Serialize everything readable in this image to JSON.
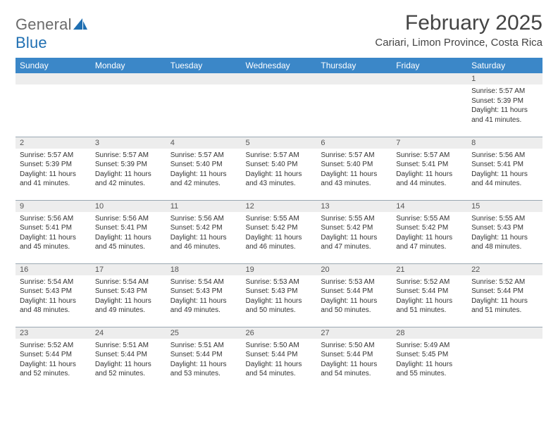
{
  "brand": {
    "part1": "General",
    "part2": "Blue"
  },
  "title": {
    "month": "February 2025",
    "location": "Cariari, Limon Province, Costa Rica"
  },
  "colors": {
    "header_bg": "#3b87c8",
    "header_text": "#ffffff",
    "daynum_bg": "#ededed",
    "rule": "#9aa7b2",
    "brand_gray": "#6b6b6b",
    "brand_blue": "#1f6fb2",
    "text": "#333333"
  },
  "typography": {
    "body_pt": 10,
    "daynum_pt": 11,
    "dow_pt": 12,
    "month_pt": 30,
    "location_pt": 15
  },
  "dow": [
    "Sunday",
    "Monday",
    "Tuesday",
    "Wednesday",
    "Thursday",
    "Friday",
    "Saturday"
  ],
  "weeks": [
    [
      {
        "day": ""
      },
      {
        "day": ""
      },
      {
        "day": ""
      },
      {
        "day": ""
      },
      {
        "day": ""
      },
      {
        "day": ""
      },
      {
        "day": "1",
        "sunrise": "Sunrise: 5:57 AM",
        "sunset": "Sunset: 5:39 PM",
        "daylight": "Daylight: 11 hours and 41 minutes."
      }
    ],
    [
      {
        "day": "2",
        "sunrise": "Sunrise: 5:57 AM",
        "sunset": "Sunset: 5:39 PM",
        "daylight": "Daylight: 11 hours and 41 minutes."
      },
      {
        "day": "3",
        "sunrise": "Sunrise: 5:57 AM",
        "sunset": "Sunset: 5:39 PM",
        "daylight": "Daylight: 11 hours and 42 minutes."
      },
      {
        "day": "4",
        "sunrise": "Sunrise: 5:57 AM",
        "sunset": "Sunset: 5:40 PM",
        "daylight": "Daylight: 11 hours and 42 minutes."
      },
      {
        "day": "5",
        "sunrise": "Sunrise: 5:57 AM",
        "sunset": "Sunset: 5:40 PM",
        "daylight": "Daylight: 11 hours and 43 minutes."
      },
      {
        "day": "6",
        "sunrise": "Sunrise: 5:57 AM",
        "sunset": "Sunset: 5:40 PM",
        "daylight": "Daylight: 11 hours and 43 minutes."
      },
      {
        "day": "7",
        "sunrise": "Sunrise: 5:57 AM",
        "sunset": "Sunset: 5:41 PM",
        "daylight": "Daylight: 11 hours and 44 minutes."
      },
      {
        "day": "8",
        "sunrise": "Sunrise: 5:56 AM",
        "sunset": "Sunset: 5:41 PM",
        "daylight": "Daylight: 11 hours and 44 minutes."
      }
    ],
    [
      {
        "day": "9",
        "sunrise": "Sunrise: 5:56 AM",
        "sunset": "Sunset: 5:41 PM",
        "daylight": "Daylight: 11 hours and 45 minutes."
      },
      {
        "day": "10",
        "sunrise": "Sunrise: 5:56 AM",
        "sunset": "Sunset: 5:41 PM",
        "daylight": "Daylight: 11 hours and 45 minutes."
      },
      {
        "day": "11",
        "sunrise": "Sunrise: 5:56 AM",
        "sunset": "Sunset: 5:42 PM",
        "daylight": "Daylight: 11 hours and 46 minutes."
      },
      {
        "day": "12",
        "sunrise": "Sunrise: 5:55 AM",
        "sunset": "Sunset: 5:42 PM",
        "daylight": "Daylight: 11 hours and 46 minutes."
      },
      {
        "day": "13",
        "sunrise": "Sunrise: 5:55 AM",
        "sunset": "Sunset: 5:42 PM",
        "daylight": "Daylight: 11 hours and 47 minutes."
      },
      {
        "day": "14",
        "sunrise": "Sunrise: 5:55 AM",
        "sunset": "Sunset: 5:42 PM",
        "daylight": "Daylight: 11 hours and 47 minutes."
      },
      {
        "day": "15",
        "sunrise": "Sunrise: 5:55 AM",
        "sunset": "Sunset: 5:43 PM",
        "daylight": "Daylight: 11 hours and 48 minutes."
      }
    ],
    [
      {
        "day": "16",
        "sunrise": "Sunrise: 5:54 AM",
        "sunset": "Sunset: 5:43 PM",
        "daylight": "Daylight: 11 hours and 48 minutes."
      },
      {
        "day": "17",
        "sunrise": "Sunrise: 5:54 AM",
        "sunset": "Sunset: 5:43 PM",
        "daylight": "Daylight: 11 hours and 49 minutes."
      },
      {
        "day": "18",
        "sunrise": "Sunrise: 5:54 AM",
        "sunset": "Sunset: 5:43 PM",
        "daylight": "Daylight: 11 hours and 49 minutes."
      },
      {
        "day": "19",
        "sunrise": "Sunrise: 5:53 AM",
        "sunset": "Sunset: 5:43 PM",
        "daylight": "Daylight: 11 hours and 50 minutes."
      },
      {
        "day": "20",
        "sunrise": "Sunrise: 5:53 AM",
        "sunset": "Sunset: 5:44 PM",
        "daylight": "Daylight: 11 hours and 50 minutes."
      },
      {
        "day": "21",
        "sunrise": "Sunrise: 5:52 AM",
        "sunset": "Sunset: 5:44 PM",
        "daylight": "Daylight: 11 hours and 51 minutes."
      },
      {
        "day": "22",
        "sunrise": "Sunrise: 5:52 AM",
        "sunset": "Sunset: 5:44 PM",
        "daylight": "Daylight: 11 hours and 51 minutes."
      }
    ],
    [
      {
        "day": "23",
        "sunrise": "Sunrise: 5:52 AM",
        "sunset": "Sunset: 5:44 PM",
        "daylight": "Daylight: 11 hours and 52 minutes."
      },
      {
        "day": "24",
        "sunrise": "Sunrise: 5:51 AM",
        "sunset": "Sunset: 5:44 PM",
        "daylight": "Daylight: 11 hours and 52 minutes."
      },
      {
        "day": "25",
        "sunrise": "Sunrise: 5:51 AM",
        "sunset": "Sunset: 5:44 PM",
        "daylight": "Daylight: 11 hours and 53 minutes."
      },
      {
        "day": "26",
        "sunrise": "Sunrise: 5:50 AM",
        "sunset": "Sunset: 5:44 PM",
        "daylight": "Daylight: 11 hours and 54 minutes."
      },
      {
        "day": "27",
        "sunrise": "Sunrise: 5:50 AM",
        "sunset": "Sunset: 5:44 PM",
        "daylight": "Daylight: 11 hours and 54 minutes."
      },
      {
        "day": "28",
        "sunrise": "Sunrise: 5:49 AM",
        "sunset": "Sunset: 5:45 PM",
        "daylight": "Daylight: 11 hours and 55 minutes."
      },
      {
        "day": ""
      }
    ]
  ]
}
